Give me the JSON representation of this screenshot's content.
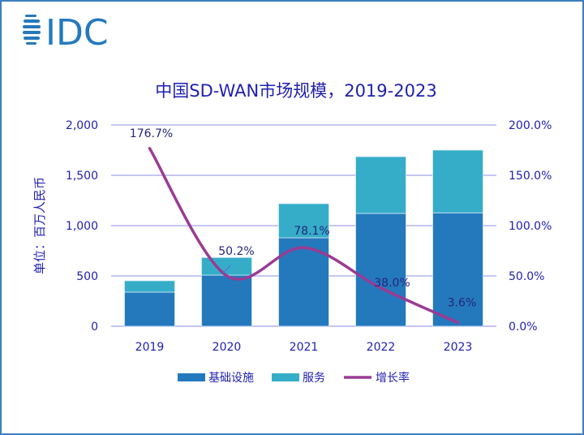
{
  "logo_text": "IDC",
  "chart_data": {
    "type": "bar",
    "stacked": true,
    "title": "中国SD-WAN市场规模，2019-2023",
    "ylabel": "单位：百万人民币",
    "categories": [
      "2019",
      "2020",
      "2021",
      "2022",
      "2023"
    ],
    "series": [
      {
        "name": "基础设施",
        "values": [
          339,
          508,
          879,
          1121,
          1127
        ],
        "color": "#2479bd"
      },
      {
        "name": "服务",
        "values": [
          113,
          175,
          339,
          564,
          623
        ],
        "color": "#35adc8"
      }
    ],
    "line_series": {
      "name": "增长率",
      "values": [
        176.7,
        50.2,
        78.1,
        38.0,
        3.6
      ],
      "labels": [
        "176.7%",
        "50.2%",
        "78.1%",
        "38.0%",
        "3.6%"
      ],
      "color": "#9a3b93",
      "axis": "right",
      "smooth": true
    },
    "ylim": [
      0,
      2000
    ],
    "y_ticks": [
      "0",
      "500",
      "1,000",
      "1,500",
      "2,000"
    ],
    "y2lim": [
      0,
      200
    ],
    "y2_ticks": [
      "0.0%",
      "50.0%",
      "100.0%",
      "150.0%",
      "200.0%"
    ],
    "grid": true,
    "grid_color": "#b3b3ef",
    "text_color": "#1f1fb0",
    "legend_placement": "bottom"
  }
}
